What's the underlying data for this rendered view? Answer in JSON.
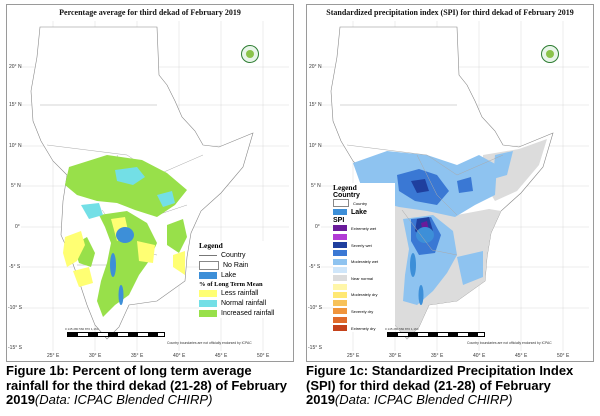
{
  "left_map": {
    "title": "Percentage average for third dekad of February 2019",
    "lat_labels": [
      "20° N",
      "15° N",
      "10° N",
      "5° N",
      "0°",
      "-5° S",
      "-10° S",
      "-15° S"
    ],
    "lon_labels": [
      "25° E",
      "30° E",
      "35° E",
      "40° E",
      "45° E",
      "50° E"
    ],
    "legend": {
      "title": "Legend",
      "items": [
        {
          "label": "Country",
          "kind": "line"
        },
        {
          "label": "No Rain",
          "kind": "box"
        },
        {
          "label": "Lake",
          "color": "#3d8fd8"
        }
      ],
      "subtitle": "% of Long Term Mean",
      "classes": [
        {
          "label": "Less rainfall",
          "color": "#ffff73"
        },
        {
          "label": "Normal rainfall",
          "color": "#73dfe6"
        },
        {
          "label": "Increased rainfall",
          "color": "#98e04a"
        }
      ]
    },
    "scale_labels": "0   145  280        560         870       1,160",
    "disclaimer": "Country boundaries are not officially endorsed by ICPAC"
  },
  "right_map": {
    "title": "Standardized precipitation index (SPI) for third dekad of February 2019",
    "lat_labels": [
      "20° N",
      "15° N",
      "10° N",
      "5° N",
      "0°",
      "-5° S",
      "-10° S",
      "-15° S"
    ],
    "lon_labels": [
      "25° E",
      "30° E",
      "35° E",
      "40° E",
      "45° E",
      "50° E"
    ],
    "legend": {
      "title": "Legend",
      "country_heading": "Country",
      "country_item": "Country",
      "lake_label": "Lake",
      "spi_heading": "SPI",
      "classes": [
        {
          "label": "Extremely wet",
          "color": "#6a1b9a"
        },
        {
          "label": "",
          "color": "#b23bd6"
        },
        {
          "label": "Severly wet",
          "color": "#1f3f9e"
        },
        {
          "label": "",
          "color": "#3a78d4"
        },
        {
          "label": "Moderately wet",
          "color": "#8ec3f0"
        },
        {
          "label": "",
          "color": "#cfe6fa"
        },
        {
          "label": "Near normal",
          "color": "#dcdcdc"
        },
        {
          "label": "",
          "color": "#fff6a8"
        },
        {
          "label": "Moderately dry",
          "color": "#ffe873"
        },
        {
          "label": "",
          "color": "#f7c25a"
        },
        {
          "label": "Severely dry",
          "color": "#f0953c"
        },
        {
          "label": "",
          "color": "#e06b2a"
        },
        {
          "label": "Extremely dry",
          "color": "#c4421b"
        }
      ]
    },
    "scale_labels": "0   145  280        560         870       1,160",
    "disclaimer": "Country boundaries are not officially endorsed by ICPAC"
  },
  "colors": {
    "land_base": "#ffffff",
    "border": "#888888",
    "lake": "#3d8fd8",
    "less": "#ffff73",
    "normal": "#73dfe6",
    "increased": "#98e04a",
    "spi_light": "#8ec3f0",
    "spi_mid": "#3a78d4",
    "spi_dark": "#1f3f9e",
    "spi_gray": "#dcdcdc"
  },
  "captions": {
    "left_main": "Figure 1b: Percent of long term average rainfall for the third dekad (21-28) of February 2019",
    "left_source": "(Data: ICPAC Blended CHIRP)",
    "right_main": "Figure 1c: Standardized Precipitation Index (SPI) for third dekad (21-28) of February 2019",
    "right_source": "(Data: ICPAC Blended CHIRP)"
  }
}
